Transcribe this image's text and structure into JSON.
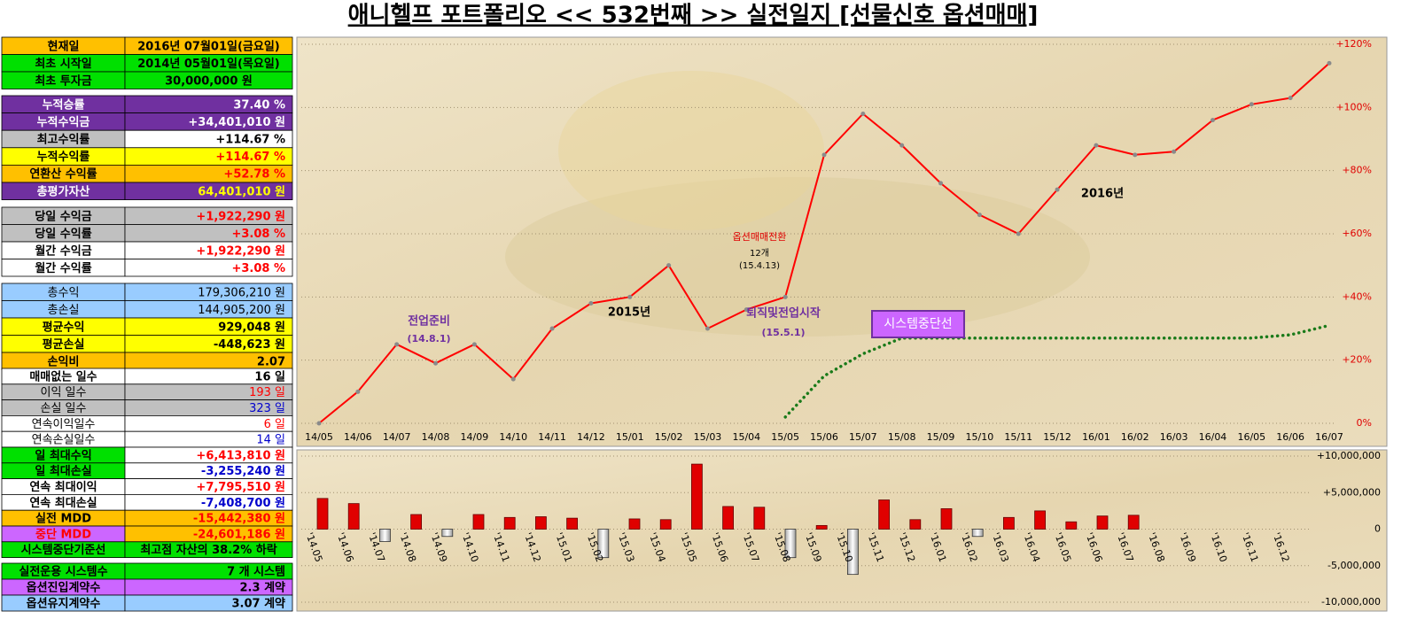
{
  "title": "애니헬프 포트폴리오 << 532번째 >> 실전일지 [선물신호 옵션매매]",
  "table": {
    "groups": [
      {
        "rows": [
          [
            "현재일",
            "2016년 07월01일(금요일)"
          ],
          [
            "최초 시작일",
            "2014년 05월01일(목요일)"
          ],
          [
            "최초 투자금",
            "30,000,000 원"
          ]
        ]
      },
      {
        "rows": [
          [
            "누적승률",
            "37.40 %"
          ],
          [
            "누적수익금",
            "+34,401,010 원"
          ],
          [
            "최고수익률",
            "+114.67 %"
          ],
          [
            "누적수익률",
            "+114.67 %"
          ],
          [
            "연환산 수익률",
            "+52.78 %"
          ],
          [
            "총평가자산",
            "64,401,010 원"
          ]
        ]
      },
      {
        "rows": [
          [
            "당일 수익금",
            "+1,922,290 원"
          ],
          [
            "당일 수익률",
            "+3.08 %"
          ],
          [
            "월간 수익금",
            "+1,922,290 원"
          ],
          [
            "월간 수익률",
            "+3.08 %"
          ]
        ]
      },
      {
        "rows": [
          [
            "총수익",
            "179,306,210 원"
          ],
          [
            "총손실",
            "144,905,200 원"
          ],
          [
            "평균수익",
            "929,048 원"
          ],
          [
            "평균손실",
            "-448,623 원"
          ],
          [
            "손익비",
            "2.07"
          ]
        ]
      },
      {
        "rows": [
          [
            "매매없는 일수",
            "16 일"
          ],
          [
            "이익 일수",
            "193 일"
          ],
          [
            "손실 일수",
            "323 일"
          ],
          [
            "연속이익일수",
            "6 일"
          ],
          [
            "연속손실일수",
            "14 일"
          ],
          [
            "일 최대수익",
            "+6,413,810 원"
          ],
          [
            "일 최대손실",
            "-3,255,240 원"
          ],
          [
            "연속 최대이익",
            "+7,795,510 원"
          ],
          [
            "연속 최대손실",
            "-7,408,700 원"
          ],
          [
            "실전 MDD",
            "-15,442,380 원"
          ],
          [
            "중단 MDD",
            "-24,601,186 원"
          ],
          [
            "시스템중단기준선",
            "최고점 자산의 38.2% 하락"
          ]
        ]
      },
      {
        "rows": [
          [
            "실전운용 시스템수",
            "7 개 시스템"
          ],
          [
            "옵션진입계약수",
            "2.3 계약"
          ],
          [
            "옵션유지계약수",
            "3.07 계약"
          ]
        ]
      }
    ]
  },
  "chart_data": [
    {
      "type": "line",
      "categories": [
        "14/05",
        "14/06",
        "14/07",
        "14/08",
        "14/09",
        "14/10",
        "14/11",
        "14/12",
        "15/01",
        "15/02",
        "15/03",
        "15/04",
        "15/05",
        "15/06",
        "15/07",
        "15/08",
        "15/09",
        "15/10",
        "15/11",
        "15/12",
        "16/01",
        "16/02",
        "16/03",
        "16/04",
        "16/05",
        "16/06",
        "16/07"
      ],
      "series": [
        {
          "color": "#ff0000",
          "style": "solid",
          "values": [
            0,
            10,
            25,
            19,
            25,
            14,
            30,
            38,
            40,
            50,
            30,
            36,
            40,
            85,
            98,
            88,
            76,
            66,
            60,
            74,
            88,
            85,
            86,
            96,
            101,
            103,
            114
          ]
        },
        {
          "color": "#1a7a1a",
          "style": "dotted",
          "values": [
            null,
            null,
            null,
            null,
            null,
            null,
            null,
            null,
            null,
            null,
            null,
            null,
            2,
            15,
            22,
            27,
            27,
            27,
            27,
            27,
            27,
            27,
            27,
            27,
            27,
            28,
            31
          ]
        }
      ],
      "ylim": [
        0,
        120
      ],
      "yticks": [
        {
          "value": 0,
          "label": "0%"
        },
        {
          "value": 20,
          "label": "+20%"
        },
        {
          "value": 40,
          "label": "+40%"
        },
        {
          "value": 60,
          "label": "+60%"
        },
        {
          "value": 80,
          "label": "+80%"
        },
        {
          "value": 100,
          "label": "+100%"
        },
        {
          "value": 120,
          "label": "+120%"
        }
      ],
      "grid": true,
      "annotations": [
        "전업준비",
        "(14.8.1)",
        "2015년",
        "옵션매매전환",
        "12개",
        "(15.4.13)",
        "퇴직및전업시작",
        "(15.5.1)",
        "시스템중단선",
        "2016년"
      ]
    },
    {
      "type": "bar",
      "categories": [
        "'14.05",
        "'14.06",
        "'14.07",
        "'14.08",
        "'14.09",
        "'14.10",
        "'14.11",
        "'14.12",
        "'15.01",
        "'15.02",
        "'15.03",
        "'15.04",
        "'15.05",
        "'15.06",
        "'15.07",
        "'15.08",
        "'15.09",
        "'15.10",
        "'15.11",
        "'15.12",
        "'16.01",
        "'16.02",
        "'16.03",
        "'16.04",
        "'16.05",
        "'16.06",
        "'16.07",
        "'16.08",
        "'16.09",
        "'16.10",
        "'16.11",
        "'16.12"
      ],
      "values": [
        4200000,
        3500000,
        -1700000,
        2000000,
        -1000000,
        2000000,
        1600000,
        1700000,
        1500000,
        -3900000,
        1400000,
        1300000,
        8900000,
        3100000,
        3000000,
        -3900000,
        500000,
        -6200000,
        4000000,
        1300000,
        2800000,
        -1000000,
        1600000,
        2500000,
        1000000,
        1800000,
        1900000,
        null,
        null,
        null,
        null,
        null
      ],
      "color": "#e00000",
      "negative_color": "#f2f2f2",
      "ylim": [
        -10000000,
        10000000
      ],
      "yticks": [
        {
          "value": -10000000,
          "label": "-10,000,000"
        },
        {
          "value": -5000000,
          "label": "-5,000,000"
        },
        0,
        {
          "value": 5000000,
          "label": "+5,000,000"
        },
        {
          "value": 10000000,
          "label": "+10,000,000"
        }
      ],
      "grid": true
    }
  ]
}
